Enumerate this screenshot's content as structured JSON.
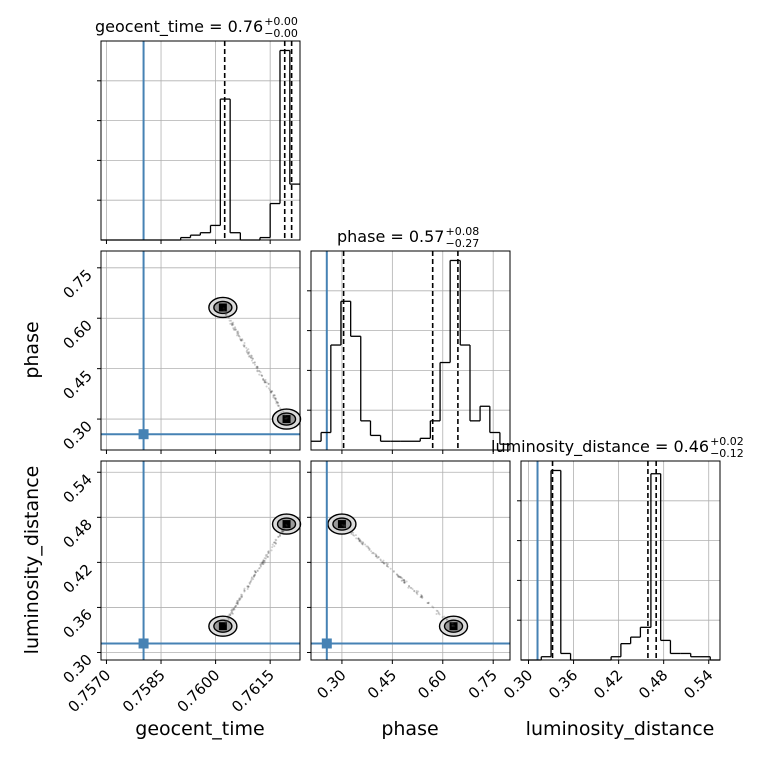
{
  "chart_data": {
    "type": "corner",
    "parameters": [
      "geocent_time",
      "phase",
      "luminosity_distance"
    ],
    "axis_labels": {
      "geocent_time": "geocent_time",
      "phase": "phase",
      "luminosity_distance": "luminosity_distance"
    },
    "ranges": {
      "geocent_time": [
        0.75685,
        0.76232
      ],
      "phase": [
        0.208,
        0.8
      ],
      "luminosity_distance": [
        0.29,
        0.555
      ]
    },
    "ticks": {
      "geocent_time": [
        "0.7570",
        "0.7585",
        "0.7600",
        "0.7615"
      ],
      "phase": [
        "0.30",
        "0.45",
        "0.60",
        "0.75"
      ],
      "luminosity_distance": [
        "0.30",
        "0.36",
        "0.42",
        "0.48",
        "0.54"
      ]
    },
    "titles": {
      "geocent_time": {
        "prefix": "geocent_time = 0.76",
        "plus": "+0.00",
        "minus": "−0.00"
      },
      "phase": {
        "prefix": "phase = 0.57",
        "plus": "+0.08",
        "minus": "−0.27"
      },
      "luminosity_distance": {
        "prefix": "luminosity_distance = 0.46",
        "plus": "+0.02",
        "minus": "−0.12"
      }
    },
    "truths": {
      "geocent_time": 0.75802,
      "phase": 0.255,
      "luminosity_distance": 0.312
    },
    "quantiles": {
      "geocent_time": [
        0.76025,
        0.7619,
        0.76209
      ],
      "phase": [
        0.305,
        0.57,
        0.645
      ],
      "luminosity_distance": [
        0.332,
        0.459,
        0.47
      ]
    },
    "histograms": {
      "geocent_time": {
        "edges": [
          0.75685,
          0.75712,
          0.7574,
          0.75767,
          0.75794,
          0.75822,
          0.75849,
          0.75876,
          0.75904,
          0.75931,
          0.75958,
          0.75986,
          0.76013,
          0.7604,
          0.76068,
          0.76095,
          0.76122,
          0.7615,
          0.76177,
          0.76204,
          0.76232
        ],
        "counts": [
          0,
          0,
          0,
          0,
          0,
          0,
          0,
          0,
          1,
          2,
          3,
          6,
          58,
          3,
          0,
          0,
          1,
          15,
          78,
          23
        ]
      },
      "phase": {
        "edges": [
          0.208,
          0.238,
          0.267,
          0.297,
          0.326,
          0.356,
          0.385,
          0.415,
          0.444,
          0.474,
          0.504,
          0.533,
          0.563,
          0.592,
          0.622,
          0.652,
          0.681,
          0.711,
          0.74,
          0.77,
          0.8
        ],
        "counts": [
          3,
          6,
          36,
          51,
          39,
          10,
          5,
          3,
          3,
          3,
          3,
          4,
          10,
          30,
          65,
          36,
          10,
          15,
          6,
          2
        ]
      },
      "luminosity_distance": {
        "edges": [
          0.29,
          0.303,
          0.317,
          0.33,
          0.343,
          0.356,
          0.37,
          0.383,
          0.396,
          0.41,
          0.423,
          0.436,
          0.449,
          0.463,
          0.476,
          0.489,
          0.502,
          0.516,
          0.529,
          0.542,
          0.555
        ],
        "counts": [
          0,
          0,
          1,
          58,
          2,
          0,
          0,
          0,
          0,
          1,
          5,
          7,
          10,
          57,
          6,
          2,
          2,
          1,
          1,
          0
        ]
      }
    },
    "modes": [
      {
        "geocent_time": 0.7602,
        "phase": 0.632,
        "luminosity_distance": 0.335
      },
      {
        "geocent_time": 0.76195,
        "phase": 0.3,
        "luminosity_distance": 0.471
      }
    ],
    "grid": true
  }
}
